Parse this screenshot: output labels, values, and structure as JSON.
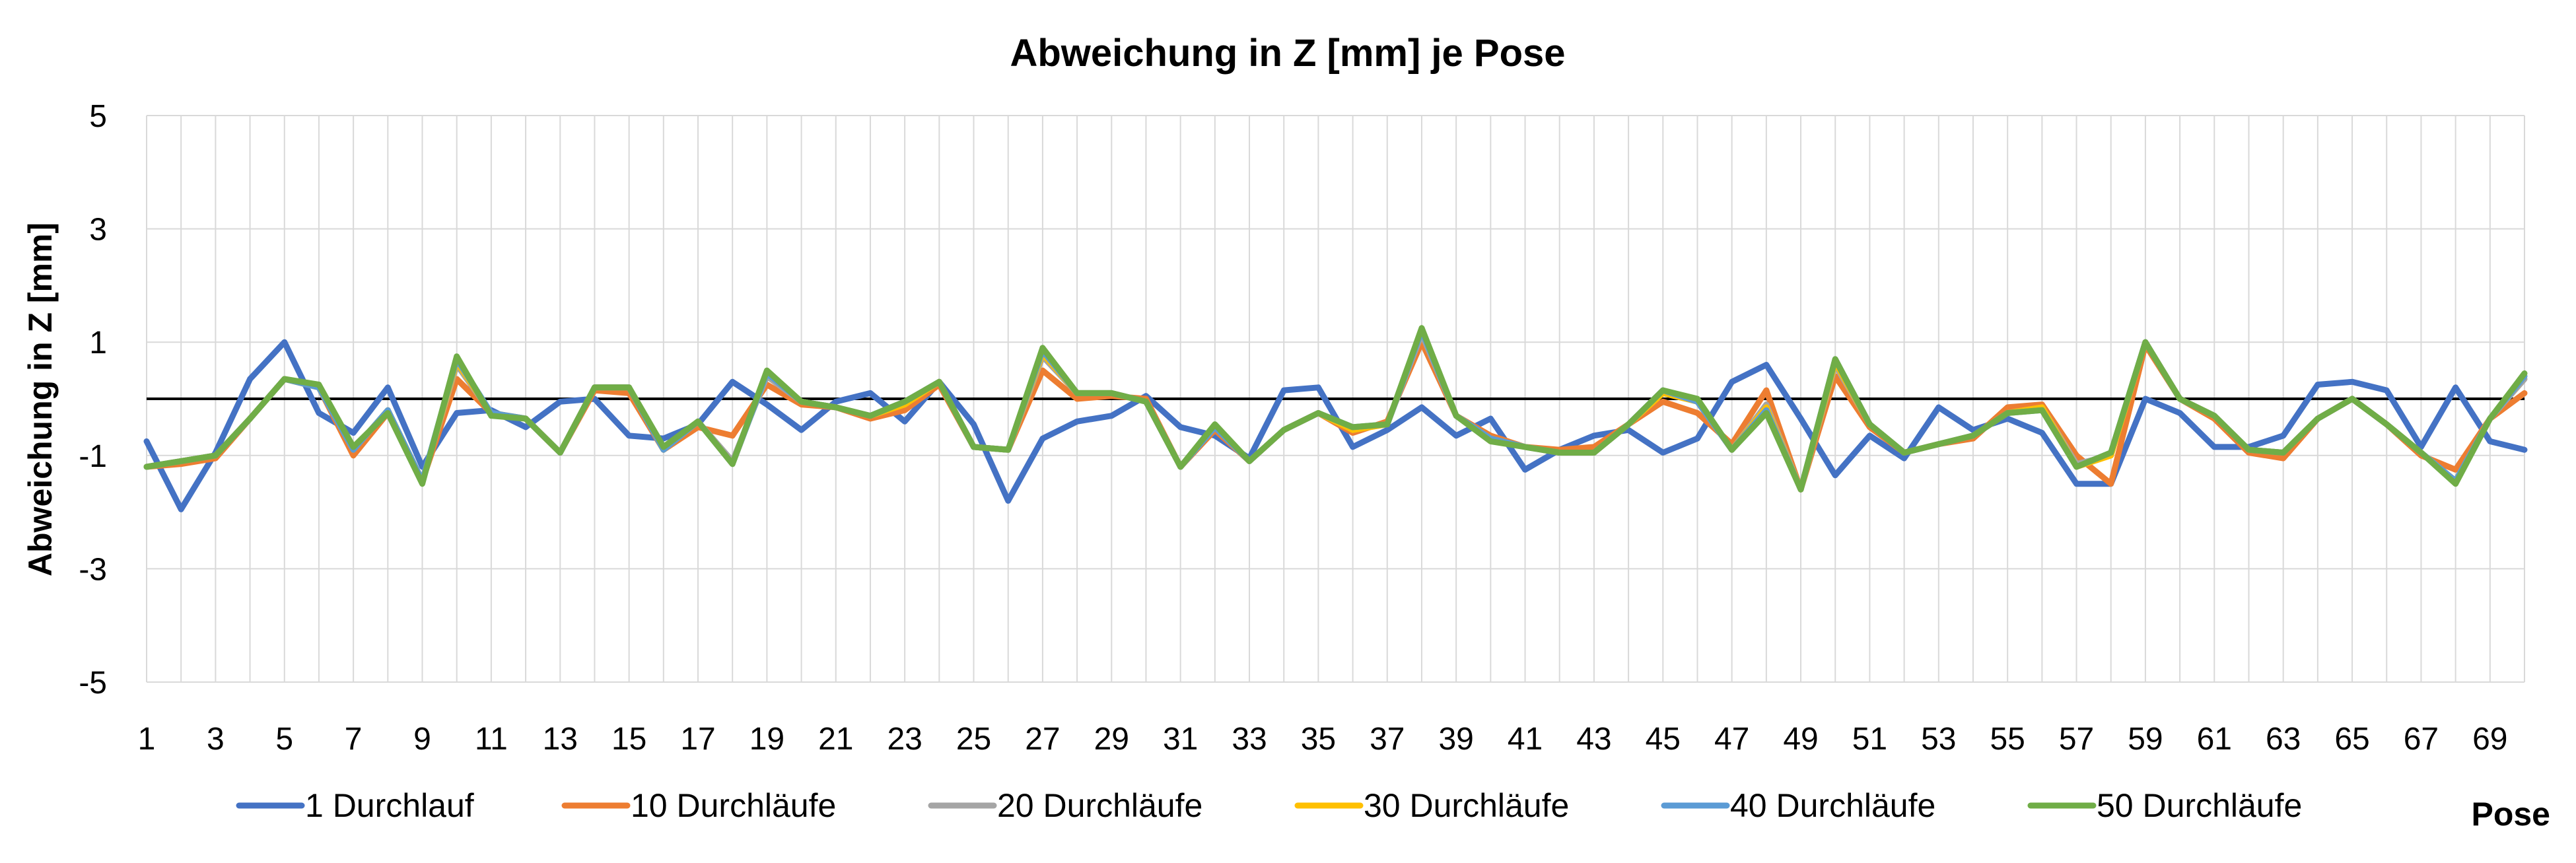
{
  "chart_data": {
    "type": "line",
    "title": "Abweichung in Z [mm] je Pose",
    "xlabel": "Pose",
    "ylabel": "Abweichung in Z [mm]",
    "ylim": [
      -5,
      5
    ],
    "yticks": [
      "5",
      "3",
      "1",
      "-1",
      "-3",
      "-5"
    ],
    "ytick_values": [
      5,
      3,
      1,
      -1,
      -3,
      -5
    ],
    "xlim": [
      1,
      70
    ],
    "xticks": [
      "1",
      "3",
      "5",
      "7",
      "9",
      "11",
      "13",
      "15",
      "17",
      "19",
      "21",
      "23",
      "25",
      "27",
      "29",
      "31",
      "33",
      "35",
      "37",
      "39",
      "41",
      "43",
      "45",
      "47",
      "49",
      "51",
      "53",
      "55",
      "57",
      "59",
      "61",
      "63",
      "65",
      "67",
      "69"
    ],
    "grid": "vertical lines at every pose, horizontal lines at each y tick",
    "zero_line": true,
    "legend_position": "bottom",
    "colors": {
      "1 Durchlauf": "#4472C4",
      "10 Durchläufe": "#ED7D31",
      "20 Durchläufe": "#A5A5A5",
      "30 Durchläufe": "#FFC000",
      "40 Durchläufe": "#5B9BD5",
      "50 Durchläufe": "#70AD47"
    },
    "x": [
      1,
      2,
      3,
      4,
      5,
      6,
      7,
      8,
      9,
      10,
      11,
      12,
      13,
      14,
      15,
      16,
      17,
      18,
      19,
      20,
      21,
      22,
      23,
      24,
      25,
      26,
      27,
      28,
      29,
      30,
      31,
      32,
      33,
      34,
      35,
      36,
      37,
      38,
      39,
      40,
      41,
      42,
      43,
      44,
      45,
      46,
      47,
      48,
      49,
      50,
      51,
      52,
      53,
      54,
      55,
      56,
      57,
      58,
      59,
      60,
      61,
      62,
      63,
      64,
      65,
      66,
      67,
      68,
      69,
      70
    ],
    "series": [
      {
        "name": "1 Durchlauf",
        "values": [
          -0.75,
          -1.95,
          -0.95,
          0.35,
          1.0,
          -0.25,
          -0.6,
          0.2,
          -1.2,
          -0.25,
          -0.2,
          -0.5,
          -0.05,
          0.0,
          -0.65,
          -0.7,
          -0.45,
          0.3,
          -0.1,
          -0.55,
          -0.05,
          0.1,
          -0.4,
          0.3,
          -0.45,
          -1.8,
          -0.7,
          -0.4,
          -0.3,
          0.05,
          -0.5,
          -0.65,
          -1.05,
          0.15,
          0.2,
          -0.85,
          -0.55,
          -0.15,
          -0.65,
          -0.35,
          -1.25,
          -0.9,
          -0.65,
          -0.55,
          -0.95,
          -0.7,
          0.3,
          0.6,
          -0.35,
          -1.35,
          -0.65,
          -1.05,
          -0.15,
          -0.55,
          -0.35,
          -0.6,
          -1.5,
          -1.5,
          0.0,
          -0.25,
          -0.85,
          -0.85,
          -0.65,
          0.25,
          0.3,
          0.15,
          -0.85,
          0.2,
          -0.75,
          -0.9
        ]
      },
      {
        "name": "10 Durchläufe",
        "values": [
          -1.2,
          -1.15,
          -1.05,
          -0.35,
          0.35,
          0.2,
          -1.0,
          -0.25,
          -1.45,
          0.35,
          -0.25,
          -0.35,
          -0.95,
          0.15,
          0.1,
          -0.9,
          -0.5,
          -0.65,
          0.25,
          -0.1,
          -0.15,
          -0.35,
          -0.2,
          0.25,
          -0.85,
          -0.9,
          0.5,
          0.0,
          0.05,
          0.0,
          -1.2,
          -0.55,
          -1.1,
          -0.55,
          -0.25,
          -0.6,
          -0.4,
          1.0,
          -0.3,
          -0.65,
          -0.85,
          -0.9,
          -0.85,
          -0.45,
          -0.05,
          -0.25,
          -0.8,
          0.15,
          -1.6,
          0.4,
          -0.5,
          -0.95,
          -0.8,
          -0.7,
          -0.15,
          -0.1,
          -1.0,
          -1.5,
          0.95,
          0.0,
          -0.35,
          -0.95,
          -1.05,
          -0.35,
          0.0,
          -0.45,
          -1.0,
          -1.25,
          -0.35,
          0.1
        ]
      },
      {
        "name": "20 Durchläufe",
        "values": [
          -1.2,
          -1.1,
          -1.0,
          -0.35,
          0.35,
          0.2,
          -0.9,
          -0.2,
          -1.45,
          0.6,
          -0.25,
          -0.35,
          -0.95,
          0.2,
          0.2,
          -0.9,
          -0.4,
          -1.1,
          0.4,
          -0.05,
          -0.15,
          -0.3,
          -0.1,
          0.3,
          -0.85,
          -0.9,
          0.75,
          0.1,
          0.1,
          -0.05,
          -1.2,
          -0.5,
          -1.1,
          -0.55,
          -0.25,
          -0.55,
          -0.45,
          1.15,
          -0.3,
          -0.7,
          -0.85,
          -0.95,
          -0.95,
          -0.45,
          0.1,
          -0.05,
          -0.9,
          -0.1,
          -1.6,
          0.6,
          -0.45,
          -0.95,
          -0.8,
          -0.65,
          -0.25,
          -0.15,
          -1.15,
          -1.0,
          1.0,
          0.0,
          -0.3,
          -0.9,
          -0.95,
          -0.35,
          0.0,
          -0.45,
          -0.95,
          -1.45,
          -0.35,
          0.35
        ]
      },
      {
        "name": "30 Durchläufe",
        "values": [
          -1.2,
          -1.1,
          -1.0,
          -0.35,
          0.35,
          0.2,
          -0.9,
          -0.2,
          -1.45,
          0.65,
          -0.25,
          -0.35,
          -0.95,
          0.2,
          0.2,
          -0.9,
          -0.4,
          -1.15,
          0.45,
          -0.05,
          -0.15,
          -0.3,
          -0.1,
          0.3,
          -0.85,
          -0.9,
          0.8,
          0.1,
          0.1,
          -0.05,
          -1.2,
          -0.5,
          -1.1,
          -0.55,
          -0.25,
          -0.55,
          -0.45,
          1.2,
          -0.3,
          -0.7,
          -0.85,
          -0.95,
          -0.95,
          -0.45,
          0.1,
          -0.05,
          -0.9,
          -0.15,
          -1.6,
          0.65,
          -0.45,
          -0.95,
          -0.8,
          -0.65,
          -0.25,
          -0.15,
          -1.2,
          -1.0,
          1.0,
          0.0,
          -0.3,
          -0.9,
          -0.95,
          -0.35,
          0.0,
          -0.45,
          -0.95,
          -1.45,
          -0.35,
          0.4
        ]
      },
      {
        "name": "40 Durchläufe",
        "values": [
          -1.2,
          -1.1,
          -1.0,
          -0.35,
          0.35,
          0.2,
          -0.9,
          -0.2,
          -1.45,
          0.7,
          -0.25,
          -0.35,
          -0.95,
          0.2,
          0.2,
          -0.9,
          -0.4,
          -1.15,
          0.45,
          -0.05,
          -0.15,
          -0.3,
          -0.05,
          0.3,
          -0.85,
          -0.9,
          0.85,
          0.1,
          0.1,
          -0.05,
          -1.2,
          -0.5,
          -1.1,
          -0.55,
          -0.25,
          -0.5,
          -0.45,
          1.2,
          -0.3,
          -0.7,
          -0.85,
          -0.95,
          -0.95,
          -0.45,
          0.15,
          -0.05,
          -0.9,
          -0.2,
          -1.6,
          0.7,
          -0.45,
          -0.95,
          -0.8,
          -0.65,
          -0.25,
          -0.2,
          -1.2,
          -0.95,
          1.0,
          0.0,
          -0.3,
          -0.9,
          -0.95,
          -0.35,
          0.0,
          -0.45,
          -0.95,
          -1.45,
          -0.35,
          0.4
        ]
      },
      {
        "name": "50 Durchläufe",
        "values": [
          -1.2,
          -1.1,
          -1.0,
          -0.35,
          0.35,
          0.25,
          -0.85,
          -0.25,
          -1.5,
          0.75,
          -0.3,
          -0.35,
          -0.95,
          0.2,
          0.2,
          -0.85,
          -0.4,
          -1.15,
          0.5,
          -0.05,
          -0.15,
          -0.3,
          -0.05,
          0.3,
          -0.85,
          -0.9,
          0.9,
          0.1,
          0.1,
          -0.05,
          -1.2,
          -0.45,
          -1.1,
          -0.55,
          -0.25,
          -0.5,
          -0.45,
          1.25,
          -0.3,
          -0.75,
          -0.85,
          -0.95,
          -0.95,
          -0.45,
          0.15,
          0.0,
          -0.9,
          -0.25,
          -1.6,
          0.7,
          -0.45,
          -0.95,
          -0.8,
          -0.65,
          -0.25,
          -0.2,
          -1.2,
          -0.95,
          1.0,
          0.0,
          -0.3,
          -0.9,
          -0.95,
          -0.35,
          0.0,
          -0.45,
          -0.95,
          -1.5,
          -0.35,
          0.45
        ]
      }
    ]
  }
}
